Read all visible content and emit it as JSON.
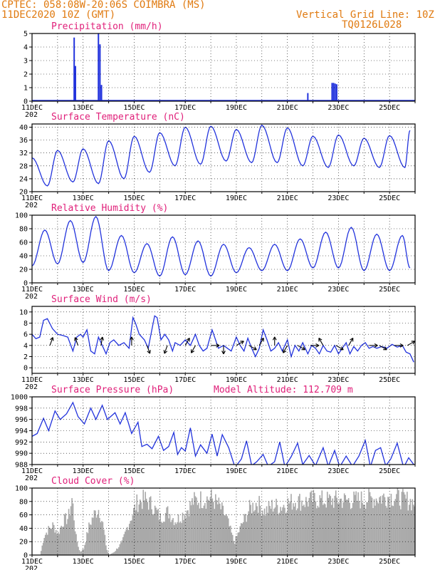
{
  "header": {
    "line1": "CPTEC:   058:08W-20:06S   COIMBRA (MS)",
    "line2": "11DEC2020 10Z (GMT)",
    "grid_note": "Vertical Grid Line: 10Z",
    "run_code": "TQ0126L028"
  },
  "colors": {
    "header": "#e07a10",
    "title": "#e0207a",
    "series": "#2233dd",
    "cloud": "#a9a9a9",
    "grid": "#000000",
    "wind_arrow": "#000000"
  },
  "x_axis": {
    "labels": [
      "11DEC",
      "13DEC",
      "15DEC",
      "17DEC",
      "19DEC",
      "21DEC",
      "23DEC",
      "25DEC"
    ],
    "sub_label": "202"
  },
  "chart_data": [
    {
      "id": "precipitation",
      "type": "bar",
      "title": "Precipitation (mm/h)",
      "ylim": [
        0,
        5
      ],
      "yticks": [
        0,
        1,
        2,
        3,
        4,
        5
      ],
      "grid": "dotted",
      "points": [
        [
          1.65,
          4.7
        ],
        [
          1.7,
          2.6
        ],
        [
          2.6,
          5.0
        ],
        [
          2.66,
          4.2
        ],
        [
          2.72,
          1.2
        ],
        [
          10.8,
          0.6
        ],
        [
          11.75,
          1.35
        ],
        [
          11.81,
          1.35
        ],
        [
          11.87,
          1.3
        ],
        [
          11.93,
          1.25
        ]
      ]
    },
    {
      "id": "temperature",
      "type": "line",
      "title": "Surface Temperature (nC)",
      "ylim": [
        20,
        41
      ],
      "yticks": [
        20,
        24,
        28,
        32,
        36,
        40
      ],
      "grid": "dotted",
      "daily": {
        "min_x": [
          0.6,
          1.6,
          2.6,
          3.6,
          4.6,
          5.6,
          6.6,
          7.6,
          8.6,
          9.6,
          10.6,
          11.6,
          12.6,
          13.6,
          14.6
        ],
        "min_y": [
          21.8,
          23,
          22.5,
          24,
          26,
          28,
          28.5,
          29.5,
          29,
          29,
          28,
          27.5,
          28,
          27.5,
          27.5
        ],
        "max_x": [
          0.0,
          1.0,
          2.0,
          3.0,
          4.0,
          5.0,
          6.0,
          7.0,
          8.0,
          9.0,
          10.0,
          11.0,
          12.0,
          13.0,
          14.0,
          14.8
        ],
        "max_y": [
          30.5,
          32.8,
          33.3,
          35.8,
          37.2,
          38.3,
          40,
          40.3,
          39.3,
          40.6,
          39.8,
          37.2,
          37.6,
          36.6,
          37.4,
          39
        ]
      }
    },
    {
      "id": "humidity",
      "type": "line",
      "title": "Relative Humidity (%)",
      "ylim": [
        0,
        100
      ],
      "yticks": [
        0,
        20,
        40,
        60,
        80,
        100
      ],
      "grid": "dotted",
      "daily": {
        "max_x": [
          0.5,
          1.5,
          2.5,
          3.5,
          4.5,
          5.5,
          6.5,
          7.5,
          8.5,
          9.5,
          10.5,
          11.5,
          12.5,
          13.5,
          14.5
        ],
        "max_y": [
          78,
          92,
          98,
          70,
          58,
          68,
          62,
          57,
          52,
          57,
          65,
          75,
          82,
          72,
          70
        ],
        "min_x": [
          0.0,
          1.0,
          2.0,
          3.0,
          4.0,
          5.0,
          6.0,
          7.0,
          8.0,
          9.0,
          10.0,
          11.0,
          12.0,
          13.0,
          14.0,
          14.8
        ],
        "min_y": [
          25,
          28,
          30,
          18,
          15,
          10,
          12,
          10,
          15,
          18,
          18,
          22,
          22,
          18,
          18,
          22
        ]
      }
    },
    {
      "id": "wind",
      "type": "line",
      "title": "Surface Wind (m/s)",
      "ylim": [
        -1,
        11
      ],
      "yticks": [
        0,
        2,
        4,
        6,
        8,
        10
      ],
      "grid": "dotted",
      "points": [
        [
          0,
          6
        ],
        [
          0.15,
          5.2
        ],
        [
          0.3,
          5.5
        ],
        [
          0.45,
          8.5
        ],
        [
          0.6,
          8.8
        ],
        [
          0.8,
          7
        ],
        [
          1.0,
          6
        ],
        [
          1.2,
          5.8
        ],
        [
          1.4,
          5.5
        ],
        [
          1.6,
          3
        ],
        [
          1.75,
          5.5
        ],
        [
          1.9,
          6
        ],
        [
          2.0,
          5.5
        ],
        [
          2.15,
          6.8
        ],
        [
          2.3,
          3
        ],
        [
          2.45,
          2.5
        ],
        [
          2.6,
          5.5
        ],
        [
          2.75,
          4
        ],
        [
          2.9,
          2.5
        ],
        [
          3.05,
          4.5
        ],
        [
          3.2,
          5
        ],
        [
          3.4,
          4
        ],
        [
          3.6,
          4.5
        ],
        [
          3.8,
          3.5
        ],
        [
          3.95,
          9
        ],
        [
          4.05,
          8
        ],
        [
          4.2,
          6
        ],
        [
          4.4,
          5
        ],
        [
          4.55,
          3.5
        ],
        [
          4.7,
          7
        ],
        [
          4.8,
          9.3
        ],
        [
          4.9,
          9
        ],
        [
          5.05,
          5
        ],
        [
          5.2,
          6
        ],
        [
          5.35,
          5
        ],
        [
          5.5,
          3
        ],
        [
          5.6,
          4.5
        ],
        [
          5.8,
          4
        ],
        [
          6.0,
          5
        ],
        [
          6.2,
          4
        ],
        [
          6.4,
          6
        ],
        [
          6.55,
          4
        ],
        [
          6.7,
          3
        ],
        [
          6.85,
          3.5
        ],
        [
          7.05,
          6.8
        ],
        [
          7.15,
          5.5
        ],
        [
          7.3,
          3.5
        ],
        [
          7.5,
          4
        ],
        [
          7.65,
          3.5
        ],
        [
          7.8,
          3
        ],
        [
          8.0,
          5.5
        ],
        [
          8.15,
          4
        ],
        [
          8.3,
          3
        ],
        [
          8.45,
          5.3
        ],
        [
          8.6,
          3.5
        ],
        [
          8.75,
          2
        ],
        [
          8.9,
          3.5
        ],
        [
          9.05,
          6.8
        ],
        [
          9.2,
          5
        ],
        [
          9.35,
          3
        ],
        [
          9.5,
          3.5
        ],
        [
          9.65,
          4.5
        ],
        [
          9.8,
          3
        ],
        [
          10.0,
          5
        ],
        [
          10.15,
          2
        ],
        [
          10.3,
          4
        ],
        [
          10.45,
          3
        ],
        [
          10.6,
          4.5
        ],
        [
          10.8,
          2.5
        ],
        [
          10.95,
          4
        ],
        [
          11.1,
          3.5
        ],
        [
          11.25,
          2.5
        ],
        [
          11.4,
          4
        ],
        [
          11.55,
          3
        ],
        [
          11.7,
          2.8
        ],
        [
          11.85,
          4
        ],
        [
          12.0,
          2.5
        ],
        [
          12.15,
          3.5
        ],
        [
          12.3,
          4.5
        ],
        [
          12.45,
          2.5
        ],
        [
          12.6,
          3.8
        ],
        [
          12.75,
          3
        ],
        [
          12.9,
          4
        ],
        [
          13.05,
          4.5
        ],
        [
          13.2,
          3.5
        ],
        [
          13.35,
          3.8
        ],
        [
          13.5,
          3.5
        ],
        [
          13.7,
          3.8
        ],
        [
          13.9,
          3.5
        ],
        [
          14.1,
          4.2
        ],
        [
          14.3,
          3.7
        ],
        [
          14.5,
          4
        ],
        [
          14.65,
          2.8
        ],
        [
          14.8,
          2.5
        ],
        [
          14.95,
          1
        ]
      ]
    },
    {
      "id": "pressure",
      "type": "line",
      "title": "Surface Pressure (hPa)",
      "annotation": "Model Altitude: 112.709 m",
      "ylim": [
        988,
        1000
      ],
      "yticks": [
        988,
        990,
        992,
        994,
        996,
        998,
        1000
      ],
      "grid": "dotted",
      "points": [
        [
          0,
          993
        ],
        [
          0.2,
          993.5
        ],
        [
          0.45,
          996.2
        ],
        [
          0.65,
          994
        ],
        [
          0.9,
          997.5
        ],
        [
          1.1,
          996
        ],
        [
          1.35,
          997
        ],
        [
          1.6,
          999
        ],
        [
          1.8,
          996.5
        ],
        [
          2.05,
          995.2
        ],
        [
          2.3,
          998
        ],
        [
          2.5,
          996
        ],
        [
          2.75,
          998.5
        ],
        [
          2.95,
          996
        ],
        [
          3.25,
          997.2
        ],
        [
          3.45,
          995.2
        ],
        [
          3.65,
          997.2
        ],
        [
          3.9,
          993.5
        ],
        [
          4.15,
          995.5
        ],
        [
          4.3,
          991.2
        ],
        [
          4.5,
          991.6
        ],
        [
          4.7,
          990.8
        ],
        [
          4.95,
          993
        ],
        [
          5.15,
          990.5
        ],
        [
          5.35,
          991.2
        ],
        [
          5.55,
          993.7
        ],
        [
          5.7,
          989.8
        ],
        [
          5.85,
          991
        ],
        [
          6.0,
          990.4
        ],
        [
          6.2,
          994.5
        ],
        [
          6.4,
          989.5
        ],
        [
          6.6,
          991.5
        ],
        [
          6.85,
          990
        ],
        [
          7.05,
          993.4
        ],
        [
          7.25,
          989.5
        ],
        [
          7.45,
          993.3
        ],
        [
          7.7,
          991
        ],
        [
          7.95,
          987.5
        ],
        [
          8.2,
          989
        ],
        [
          8.4,
          992.2
        ],
        [
          8.6,
          987.8
        ],
        [
          8.8,
          988.5
        ],
        [
          9.05,
          989.8
        ],
        [
          9.25,
          987.7
        ],
        [
          9.5,
          988.5
        ],
        [
          9.7,
          992
        ],
        [
          9.9,
          987.6
        ],
        [
          10.15,
          989.4
        ],
        [
          10.4,
          991.8
        ],
        [
          10.6,
          988
        ],
        [
          10.85,
          989.6
        ],
        [
          11.1,
          987.8
        ],
        [
          11.4,
          991
        ],
        [
          11.6,
          987.7
        ],
        [
          11.85,
          990.5
        ],
        [
          12.05,
          987.6
        ],
        [
          12.3,
          989.5
        ],
        [
          12.55,
          987.7
        ],
        [
          12.8,
          989.5
        ],
        [
          13.05,
          992.3
        ],
        [
          13.25,
          987.6
        ],
        [
          13.45,
          990.5
        ],
        [
          13.65,
          991
        ],
        [
          13.85,
          987.8
        ],
        [
          14.05,
          989
        ],
        [
          14.3,
          991.8
        ],
        [
          14.55,
          987.5
        ],
        [
          14.75,
          989.2
        ],
        [
          14.95,
          988
        ]
      ]
    },
    {
      "id": "cloud",
      "type": "bar",
      "title": "Cloud Cover (%)",
      "ylim": [
        0,
        100
      ],
      "yticks": [
        0,
        20,
        40,
        60,
        80,
        100
      ],
      "grid": "dotted",
      "approx_profile": [
        [
          0,
          0
        ],
        [
          0.3,
          0
        ],
        [
          0.45,
          30
        ],
        [
          0.6,
          40
        ],
        [
          0.8,
          48
        ],
        [
          1.0,
          35
        ],
        [
          1.2,
          55
        ],
        [
          1.4,
          60
        ],
        [
          1.55,
          92
        ],
        [
          1.7,
          30
        ],
        [
          1.85,
          5
        ],
        [
          2.0,
          10
        ],
        [
          2.2,
          45
        ],
        [
          2.4,
          65
        ],
        [
          2.6,
          75
        ],
        [
          2.75,
          50
        ],
        [
          2.9,
          10
        ],
        [
          3.0,
          0
        ],
        [
          3.2,
          5
        ],
        [
          3.5,
          20
        ],
        [
          3.8,
          55
        ],
        [
          4.1,
          85
        ],
        [
          4.4,
          90
        ],
        [
          4.7,
          80
        ],
        [
          5.0,
          60
        ],
        [
          5.3,
          70
        ],
        [
          5.6,
          55
        ],
        [
          6.0,
          70
        ],
        [
          6.3,
          87
        ],
        [
          6.6,
          90
        ],
        [
          7.0,
          92
        ],
        [
          7.3,
          80
        ],
        [
          7.6,
          60
        ],
        [
          7.9,
          20
        ],
        [
          8.2,
          50
        ],
        [
          8.5,
          75
        ],
        [
          8.8,
          85
        ],
        [
          9.1,
          70
        ],
        [
          9.4,
          80
        ],
        [
          9.7,
          78
        ],
        [
          10.0,
          84
        ],
        [
          10.3,
          88
        ],
        [
          10.7,
          86
        ],
        [
          11.0,
          90
        ],
        [
          11.5,
          88
        ],
        [
          12.0,
          89
        ],
        [
          12.5,
          88
        ],
        [
          13.0,
          90
        ],
        [
          13.5,
          92
        ],
        [
          14.0,
          95
        ],
        [
          14.4,
          91
        ],
        [
          14.7,
          88
        ],
        [
          14.95,
          85
        ]
      ]
    }
  ]
}
